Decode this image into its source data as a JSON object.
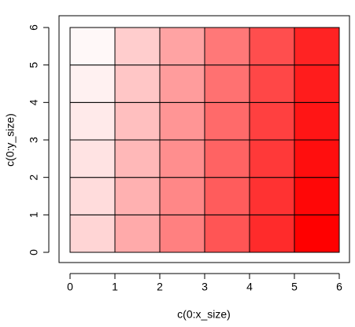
{
  "chart_data": {
    "type": "heatmap",
    "xlabel": "c(0:x_size)",
    "ylabel": "c(0:y_size)",
    "x": [
      0,
      1,
      2,
      3,
      4,
      5,
      6
    ],
    "y": [
      0,
      1,
      2,
      3,
      4,
      5,
      6
    ],
    "colors": [
      [
        "#ffd5d5",
        "#ffaaaa",
        "#ff8080",
        "#ff5555",
        "#ff2b2b",
        "#ff0000"
      ],
      [
        "#ffdcdc",
        "#ffb1b1",
        "#ff8787",
        "#ff5c5c",
        "#ff3232",
        "#ff0707"
      ],
      [
        "#ffe3e3",
        "#ffb8b8",
        "#ff8e8e",
        "#ff6363",
        "#ff3939",
        "#ff0e0e"
      ],
      [
        "#ffeaea",
        "#ffbfbf",
        "#ff9595",
        "#ff6a6a",
        "#ff4040",
        "#ff1515"
      ],
      [
        "#fff1f1",
        "#ffc6c6",
        "#ff9c9c",
        "#ff7171",
        "#ff4747",
        "#ff1c1c"
      ],
      [
        "#fff8f8",
        "#ffcdcd",
        "#ffa3a3",
        "#ff7878",
        "#ff4e4e",
        "#ff2323"
      ]
    ],
    "xlim": [
      0,
      6
    ],
    "ylim": [
      0,
      6
    ],
    "xticks": [
      0,
      1,
      2,
      3,
      4,
      5,
      6
    ],
    "yticks": [
      0,
      1,
      2,
      3,
      4,
      5,
      6
    ]
  }
}
